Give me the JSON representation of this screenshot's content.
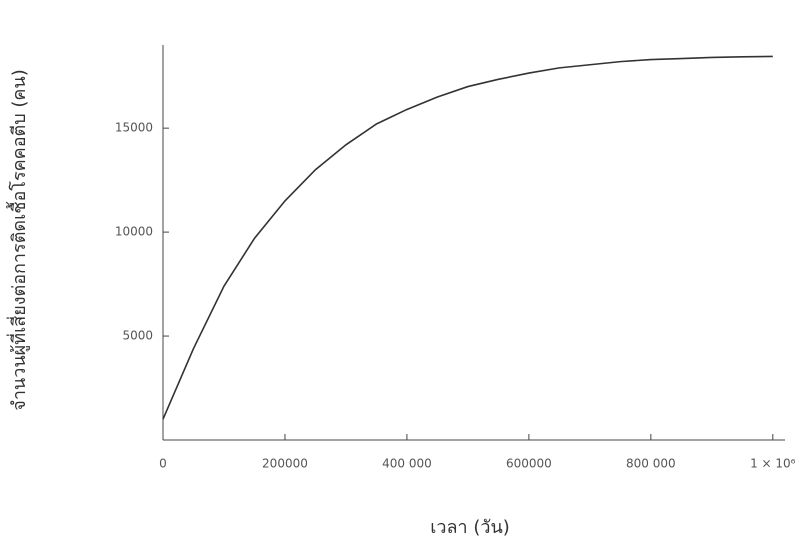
{
  "chart_data": {
    "type": "line",
    "x_label": "เวลา (วัน)",
    "y_label": "จำนวนผู้ที่เสี่ยงต่อการติดเชื้อโรคคอตีบ (คน)",
    "x": [
      0,
      50000,
      100000,
      150000,
      200000,
      250000,
      300000,
      350000,
      400000,
      450000,
      500000,
      550000,
      600000,
      650000,
      700000,
      750000,
      800000,
      850000,
      900000,
      950000,
      1000000
    ],
    "series": [
      {
        "color": "#333333",
        "values": [
          1000,
          4400,
          7400,
          9700,
          11500,
          13000,
          14200,
          15200,
          15900,
          16500,
          17000,
          17350,
          17650,
          17900,
          18050,
          18200,
          18300,
          18350,
          18400,
          18430,
          18450
        ]
      }
    ],
    "xlim": [
      0,
      1020000
    ],
    "ylim": [
      0,
      19000
    ],
    "xticks": [
      0,
      200000,
      {
        "value": 400000,
        "label": "400 000"
      },
      600000,
      {
        "value": 800000,
        "label": "800 000"
      },
      {
        "value": 1000000,
        "label": "1 × 10⁶"
      }
    ],
    "yticks": [
      5000,
      10000,
      15000
    ],
    "grid": false
  }
}
